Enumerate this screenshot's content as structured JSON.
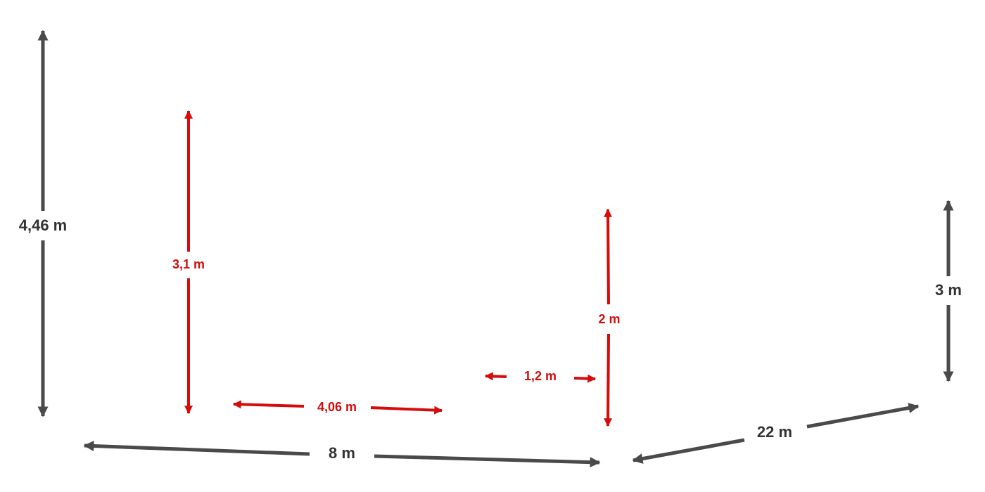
{
  "colors": {
    "dark": "#4a4a4a",
    "dark_text": "#333333",
    "red": "#d40c0c",
    "background": "#ffffff"
  },
  "dimensions": {
    "left_height": "4,46 m",
    "inner_height_left": "3,1 m",
    "inner_width": "4,06 m",
    "small_width": "1,2 m",
    "inner_height_right": "2 m",
    "right_height": "3 m",
    "front_length": "8 m",
    "side_length": "22 m"
  }
}
